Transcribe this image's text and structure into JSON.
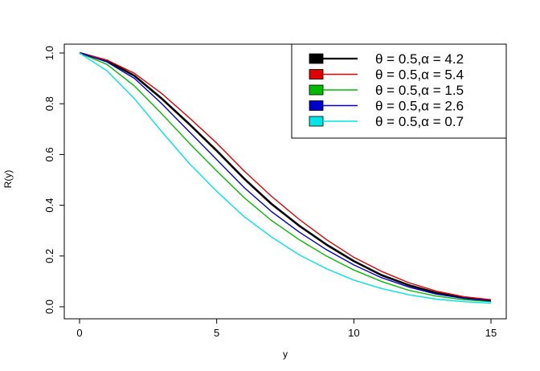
{
  "chart_data": {
    "type": "line",
    "title": "",
    "xlabel": "y",
    "ylabel": "R(y)",
    "xlim": [
      0,
      15
    ],
    "ylim": [
      0,
      1
    ],
    "x_ticks": [
      0,
      5,
      10,
      15
    ],
    "y_ticks": [
      0.0,
      0.2,
      0.4,
      0.6,
      0.8,
      1.0
    ],
    "x_tick_labels": [
      "0",
      "5",
      "10",
      "15"
    ],
    "y_tick_labels": [
      "0.0",
      "0.2",
      "0.4",
      "0.6",
      "0.8",
      "1.0"
    ],
    "grid": false,
    "legend_position": "top-right",
    "x": [
      0,
      1,
      2,
      3,
      4,
      5,
      6,
      7,
      8,
      9,
      10,
      11,
      12,
      13,
      14,
      15
    ],
    "series": [
      {
        "name": "θ = 0.5,α = 4.2",
        "color": "#000000",
        "values": [
          1.0,
          0.97,
          0.91,
          0.82,
          0.72,
          0.615,
          0.505,
          0.405,
          0.32,
          0.245,
          0.18,
          0.125,
          0.085,
          0.055,
          0.035,
          0.025
        ]
      },
      {
        "name": "θ = 0.5,α = 5.4",
        "color": "#e00000",
        "values": [
          1.0,
          0.972,
          0.92,
          0.84,
          0.745,
          0.645,
          0.535,
          0.435,
          0.345,
          0.265,
          0.195,
          0.14,
          0.095,
          0.062,
          0.04,
          0.028
        ]
      },
      {
        "name": "θ = 0.5,α = 1.5",
        "color": "#00bb00",
        "values": [
          1.0,
          0.955,
          0.87,
          0.76,
          0.645,
          0.535,
          0.43,
          0.34,
          0.265,
          0.2,
          0.145,
          0.1,
          0.065,
          0.042,
          0.028,
          0.02
        ]
      },
      {
        "name": "θ = 0.5,α = 2.6",
        "color": "#0000cc",
        "values": [
          1.0,
          0.965,
          0.9,
          0.8,
          0.69,
          0.58,
          0.47,
          0.375,
          0.295,
          0.225,
          0.165,
          0.115,
          0.078,
          0.05,
          0.033,
          0.023
        ]
      },
      {
        "name": "θ = 0.5,α = 0.7",
        "color": "#00e5e5",
        "values": [
          1.0,
          0.93,
          0.82,
          0.69,
          0.565,
          0.455,
          0.355,
          0.275,
          0.205,
          0.15,
          0.105,
          0.072,
          0.047,
          0.03,
          0.02,
          0.014
        ]
      }
    ]
  }
}
